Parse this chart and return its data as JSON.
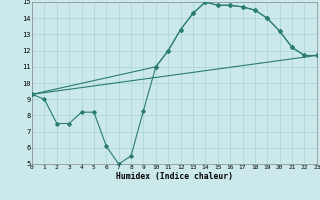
{
  "bg_color": "#cbe8eb",
  "grid_color": "#a8d4d8",
  "line_color": "#2a7b72",
  "xlim": [
    0,
    23
  ],
  "ylim": [
    5,
    15
  ],
  "xticks": [
    0,
    1,
    2,
    3,
    4,
    5,
    6,
    7,
    8,
    9,
    10,
    11,
    12,
    13,
    14,
    15,
    16,
    17,
    18,
    19,
    20,
    21,
    22,
    23
  ],
  "yticks": [
    5,
    6,
    7,
    8,
    9,
    10,
    11,
    12,
    13,
    14,
    15
  ],
  "xlabel": "Humidex (Indice chaleur)",
  "line1_x": [
    0,
    1,
    2,
    3,
    4,
    5,
    6,
    7,
    8,
    9,
    10,
    11,
    12,
    13,
    14,
    15,
    16,
    17,
    18,
    19,
    20,
    21,
    22
  ],
  "line1_y": [
    9.3,
    9.0,
    7.5,
    7.5,
    8.2,
    8.2,
    6.1,
    5.0,
    5.5,
    8.3,
    11.0,
    12.0,
    13.3,
    14.3,
    15.0,
    14.8,
    14.8,
    14.7,
    14.5,
    14.0,
    13.2,
    12.2,
    11.7
  ],
  "line2_x": [
    0,
    10,
    11,
    12,
    13,
    14,
    15,
    16,
    17,
    18,
    19,
    20,
    21,
    22,
    23
  ],
  "line2_y": [
    9.3,
    11.0,
    12.0,
    13.3,
    14.3,
    15.0,
    14.8,
    14.8,
    14.7,
    14.5,
    14.0,
    13.2,
    12.2,
    11.7,
    11.7
  ],
  "line3_x": [
    0,
    23
  ],
  "line3_y": [
    9.3,
    11.7
  ]
}
